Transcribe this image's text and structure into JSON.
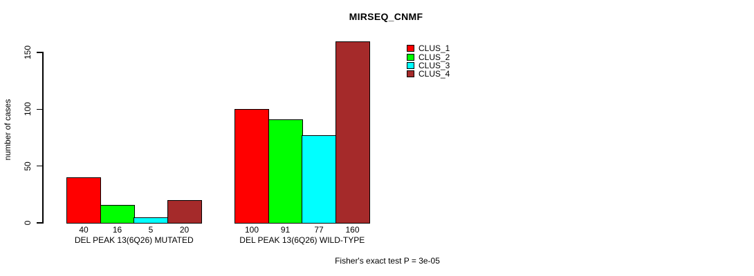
{
  "chart_data": {
    "type": "bar",
    "title": "MIRSEQ_CNMF",
    "ylabel": "number of cases",
    "xlabel": "",
    "categories": [
      "DEL PEAK 13(6Q26) MUTATED",
      "DEL PEAK 13(6Q26) WILD-TYPE"
    ],
    "series": [
      {
        "name": "CLUS_1",
        "color": "#FF0000",
        "values": [
          40,
          100
        ]
      },
      {
        "name": "CLUS_2",
        "color": "#00FF00",
        "values": [
          16,
          91
        ]
      },
      {
        "name": "CLUS_3",
        "color": "#00FFFF",
        "values": [
          5,
          77
        ]
      },
      {
        "name": "CLUS_4",
        "color": "#A52A2A",
        "values": [
          20,
          160
        ]
      }
    ],
    "ylim": [
      0,
      150
    ],
    "yticks": [
      0,
      50,
      100,
      150
    ],
    "grid": false,
    "bar_value_labels_shown": true,
    "legend_position": "top-right",
    "annotation": "Fisher's exact test P = 3e-05"
  },
  "colors": {
    "background": "#FFFFFF",
    "axis": "#000000",
    "text": "#000000"
  }
}
